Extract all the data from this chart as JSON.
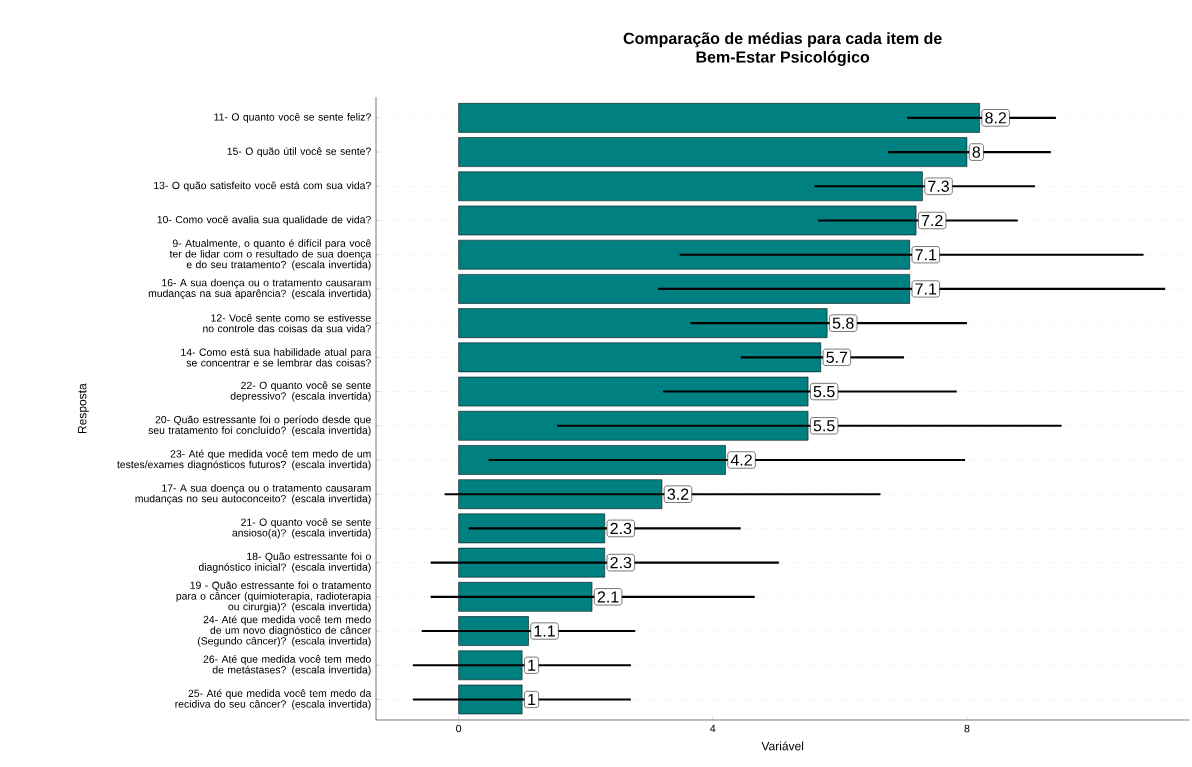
{
  "chart_data": {
    "type": "bar",
    "orientation": "horizontal",
    "title": "Comparação de médias para cada item de Bem-Estar Psicológico",
    "xlabel": "Variável",
    "ylabel": "Resposta",
    "categories": [
      "11- O quanto você se sente feliz?",
      "15- O quão útil você se sente?",
      "13- O quão satisfeito você está com sua vida?",
      "10- Como você avalia sua qualidade de vida?",
      "9- Atualmente, o quanto é difícil para você ter de lidar com o resultado de sua doença e do seu tratamento?  (escala invertida)",
      "16- A sua doença ou o tratamento causaram mudanças na sua aparência?  (escala invertida)",
      "12- Você sente como se estivesse no controle das coisas da sua vida?",
      "14- Como está sua habilidade atual para se concentrar e se lembrar das coisas?",
      "22- O quanto você se sente depressivo?  (escala invertida)",
      "20- Quão estressante foi o período desde que seu tratamento foi concluído?  (escala invertida)",
      "23- Até que medida você tem medo de um testes/exames diagnósticos futuros?  (escala invertida)",
      "17- A sua doença ou o tratamento causaram mudanças no seu autoconceito?  (escala invertida)",
      "21- O quanto você se sente ansioso(a)?  (escala invertida)",
      "18- Quão estressante foi o diagnóstico inicial?  (escala invertida)",
      "19 - Quão estressante foi o tratamento para o câncer (quimioterapia, radioterapia ou cirurgia)?  (escala invertida)",
      "24- Até que medida você tem medo de um novo diagnóstico de câncer (Segundo câncer)?  (escala invertida)",
      "26- Até que medida você tem medo de metástases?  (escala invertida)",
      "25- Até que medida você tem medo da recidiva do seu câncer?  (escala invertida)"
    ],
    "values": [
      8.2,
      8,
      7.3,
      7.2,
      7.1,
      7.1,
      5.8,
      5.7,
      5.5,
      5.5,
      4.2,
      3.2,
      2.3,
      2.3,
      2.1,
      1.1,
      1,
      1
    ],
    "errors": [
      [
        7.06,
        9.4
      ],
      [
        6.76,
        9.32
      ],
      [
        5.6,
        9.07
      ],
      [
        5.66,
        8.8
      ],
      [
        3.48,
        10.78
      ],
      [
        3.14,
        11.12
      ],
      [
        3.65,
        8.0
      ],
      [
        4.44,
        7.01
      ],
      [
        3.22,
        7.84
      ],
      [
        1.55,
        9.49
      ],
      [
        0.47,
        7.97
      ],
      [
        -0.22,
        6.64
      ],
      [
        0.16,
        4.44
      ],
      [
        -0.44,
        5.04
      ],
      [
        -0.44,
        4.66
      ],
      [
        -0.58,
        2.78
      ],
      [
        -0.72,
        2.71
      ],
      [
        -0.72,
        2.71
      ]
    ],
    "color": "#008080",
    "data_labels": true,
    "grid": "y",
    "xlim": [
      -1.3,
      11.5
    ],
    "xticks": [
      0,
      4,
      8
    ]
  }
}
